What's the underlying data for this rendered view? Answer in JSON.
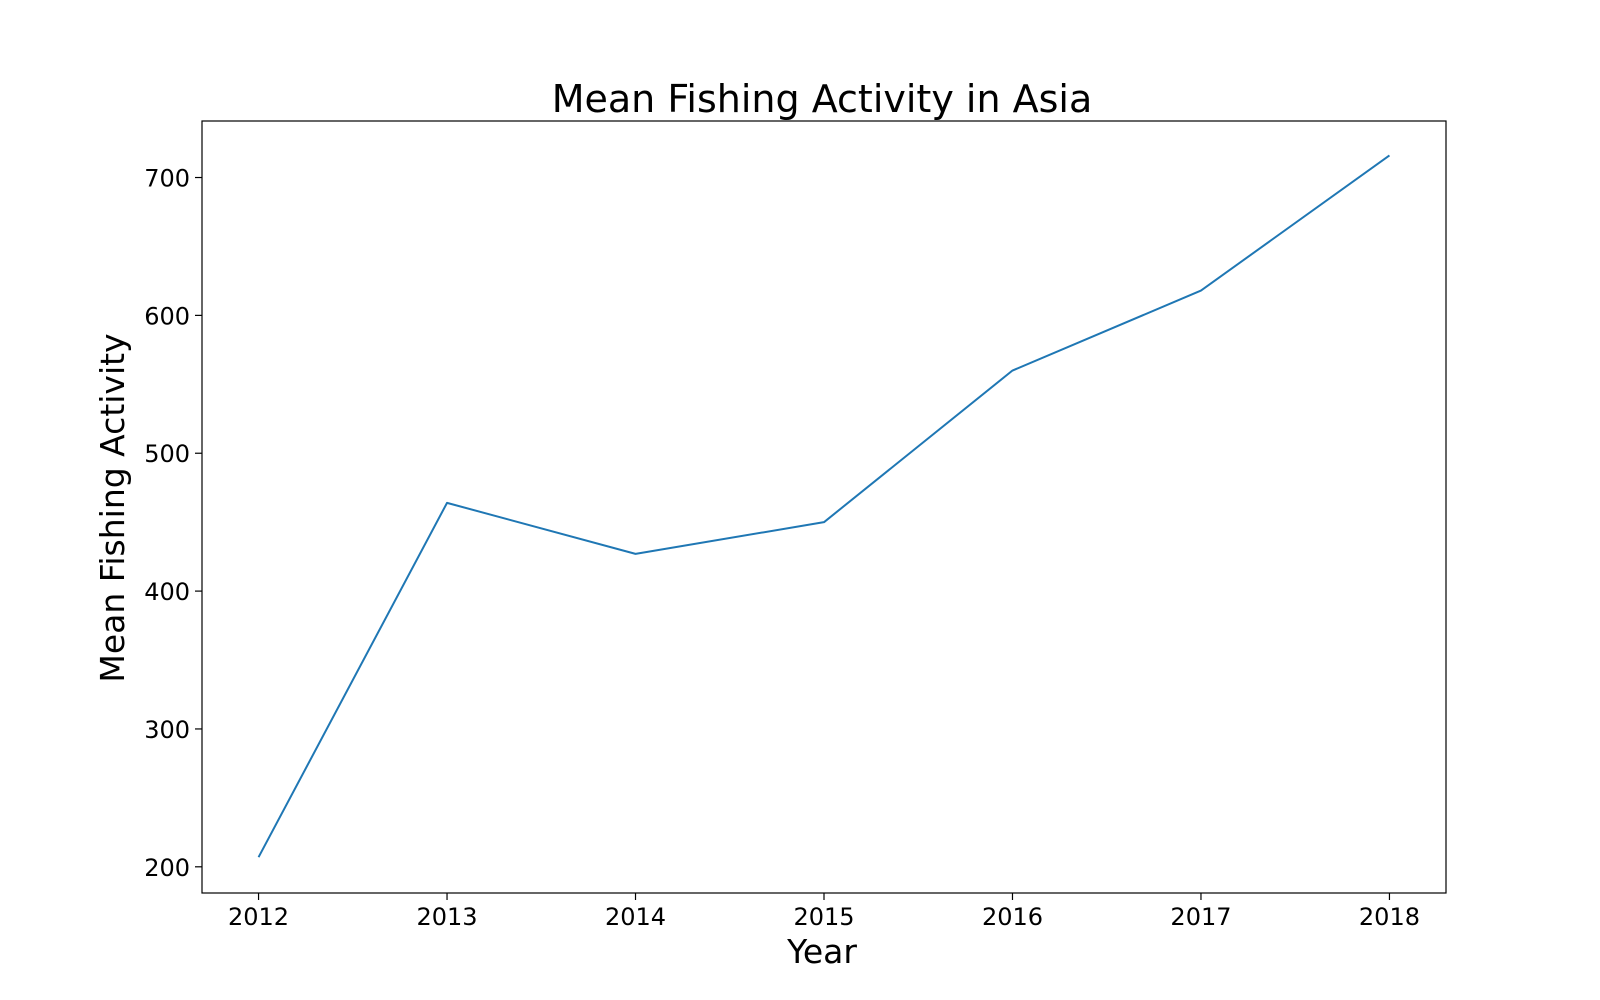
{
  "chart_data": {
    "type": "line",
    "title": "Mean Fishing Activity in Asia",
    "xlabel": "Year",
    "ylabel": "Mean Fishing Activity",
    "x": [
      2012,
      2013,
      2014,
      2015,
      2016,
      2017,
      2018
    ],
    "series": [
      {
        "values": [
          207,
          464,
          427,
          450,
          560,
          618,
          716
        ]
      }
    ],
    "xlim": [
      2011.7,
      2018.3
    ],
    "ylim": [
      181,
      741
    ],
    "xticks": [
      2012,
      2013,
      2014,
      2015,
      2016,
      2017,
      2018
    ],
    "yticks": [
      200,
      300,
      400,
      500,
      600,
      700
    ],
    "grid": false,
    "line_color": "#1f77b4"
  }
}
